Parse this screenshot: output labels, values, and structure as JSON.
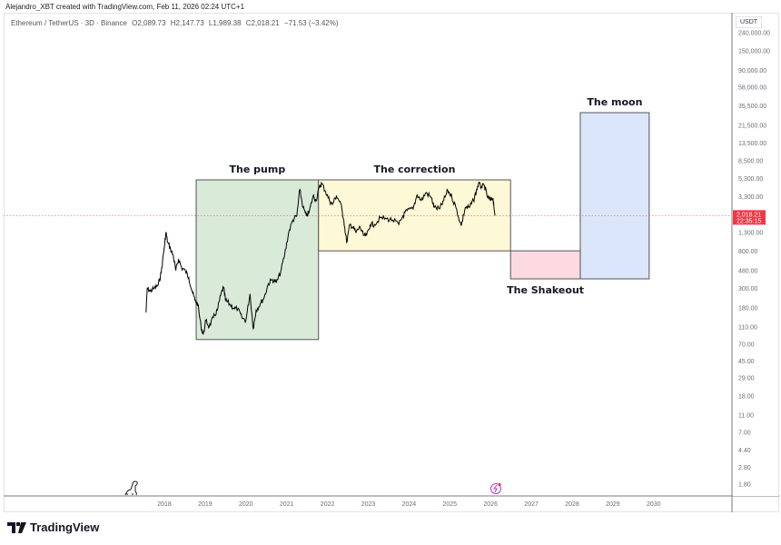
{
  "credit": "Alejandro_XBT created with TradingView.com, Feb 11, 2026 02:24 UTC+1",
  "legend": {
    "symbol": "Ethereum / TetherUS · 3D · Binance",
    "open": "O2,089.73",
    "high": "H2,147.73",
    "low": "L1,989.38",
    "close": "C2,018.21",
    "change": "−71.53 (−3.42%)"
  },
  "price_axis": {
    "unit": "USDT",
    "last_price": "2,018.21",
    "countdown": "22:35:15",
    "last_price_color": "#f23645"
  },
  "logo": "TradingView",
  "chart_data": {
    "type": "line",
    "title": "Ethereum / TetherUS · 3D · Binance",
    "y_scale": "log",
    "ylim": [
      1.6,
      240000
    ],
    "xlim": [
      2016.3,
      2031.9
    ],
    "grid": false,
    "y_ticks": [
      "240,000.00",
      "150,000.00",
      "90,000.00",
      "58,000.00",
      "35,500.00",
      "21,500.00",
      "13,500.00",
      "8,500.00",
      "5,300.00",
      "3,300.00",
      "1,300.00",
      "800.00",
      "480.00",
      "300.00",
      "180.00",
      "110.00",
      "70.00",
      "45.00",
      "29.00",
      "18.00",
      "11.00",
      "7.00",
      "4.40",
      "2.80",
      "1.80"
    ],
    "x_ticks": [
      "2018",
      "2019",
      "2020",
      "2021",
      "2022",
      "2023",
      "2024",
      "2025",
      "2026",
      "2027",
      "2028",
      "2029",
      "2030"
    ],
    "series": [
      {
        "color": "#000000",
        "points": [
          [
            2017.55,
            160
          ],
          [
            2017.58,
            300
          ],
          [
            2017.65,
            280
          ],
          [
            2017.75,
            300
          ],
          [
            2017.85,
            330
          ],
          [
            2017.92,
            450
          ],
          [
            2018.0,
            900
          ],
          [
            2018.04,
            1300
          ],
          [
            2018.08,
            1000
          ],
          [
            2018.15,
            850
          ],
          [
            2018.22,
            700
          ],
          [
            2018.28,
            480
          ],
          [
            2018.35,
            650
          ],
          [
            2018.42,
            520
          ],
          [
            2018.52,
            470
          ],
          [
            2018.6,
            400
          ],
          [
            2018.68,
            280
          ],
          [
            2018.75,
            220
          ],
          [
            2018.82,
            200
          ],
          [
            2018.9,
            110
          ],
          [
            2018.95,
            90
          ],
          [
            2019.02,
            130
          ],
          [
            2019.1,
            110
          ],
          [
            2019.2,
            140
          ],
          [
            2019.3,
            170
          ],
          [
            2019.38,
            250
          ],
          [
            2019.45,
            310
          ],
          [
            2019.5,
            220
          ],
          [
            2019.6,
            200
          ],
          [
            2019.7,
            180
          ],
          [
            2019.8,
            175
          ],
          [
            2019.9,
            140
          ],
          [
            2020.0,
            130
          ],
          [
            2020.1,
            260
          ],
          [
            2020.18,
            105
          ],
          [
            2020.25,
            170
          ],
          [
            2020.35,
            200
          ],
          [
            2020.45,
            240
          ],
          [
            2020.55,
            340
          ],
          [
            2020.65,
            380
          ],
          [
            2020.75,
            350
          ],
          [
            2020.85,
            460
          ],
          [
            2020.95,
            730
          ],
          [
            2021.05,
            1300
          ],
          [
            2021.15,
            1800
          ],
          [
            2021.25,
            2000
          ],
          [
            2021.32,
            4000
          ],
          [
            2021.4,
            2500
          ],
          [
            2021.48,
            2000
          ],
          [
            2021.55,
            2200
          ],
          [
            2021.65,
            3400
          ],
          [
            2021.72,
            3000
          ],
          [
            2021.8,
            4200
          ],
          [
            2021.86,
            4700
          ],
          [
            2021.95,
            3800
          ],
          [
            2022.05,
            3000
          ],
          [
            2022.12,
            2700
          ],
          [
            2022.22,
            3400
          ],
          [
            2022.32,
            2800
          ],
          [
            2022.4,
            1800
          ],
          [
            2022.47,
            1000
          ],
          [
            2022.55,
            1600
          ],
          [
            2022.62,
            1500
          ],
          [
            2022.7,
            1300
          ],
          [
            2022.8,
            1500
          ],
          [
            2022.88,
            1200
          ],
          [
            2022.96,
            1200
          ],
          [
            2023.05,
            1600
          ],
          [
            2023.15,
            1600
          ],
          [
            2023.3,
            1900
          ],
          [
            2023.45,
            1850
          ],
          [
            2023.6,
            1800
          ],
          [
            2023.75,
            1600
          ],
          [
            2023.85,
            2000
          ],
          [
            2023.95,
            2300
          ],
          [
            2024.1,
            2400
          ],
          [
            2024.2,
            3500
          ],
          [
            2024.3,
            3000
          ],
          [
            2024.42,
            3700
          ],
          [
            2024.55,
            3200
          ],
          [
            2024.62,
            2500
          ],
          [
            2024.75,
            2400
          ],
          [
            2024.85,
            3000
          ],
          [
            2024.95,
            3900
          ],
          [
            2025.05,
            3300
          ],
          [
            2025.15,
            2500
          ],
          [
            2025.28,
            1550
          ],
          [
            2025.38,
            2500
          ],
          [
            2025.48,
            2500
          ],
          [
            2025.58,
            3000
          ],
          [
            2025.65,
            3800
          ],
          [
            2025.7,
            4600
          ],
          [
            2025.78,
            4300
          ],
          [
            2025.85,
            4400
          ],
          [
            2025.92,
            3300
          ],
          [
            2026.0,
            3000
          ],
          [
            2026.06,
            3200
          ],
          [
            2026.11,
            2018
          ]
        ]
      }
    ],
    "annotations": [
      {
        "label": "The pump",
        "x": [
          2018.78,
          2021.78
        ],
        "y": [
          79,
          5140
        ],
        "fill": "#d9ead9"
      },
      {
        "label": "The correction",
        "x": [
          2021.78,
          2026.49
        ],
        "y": [
          803,
          5140
        ],
        "fill": "#fdf8d6"
      },
      {
        "label": "The Shakeout",
        "x": [
          2026.49,
          2028.2
        ],
        "y": [
          386,
          803
        ],
        "fill": "#fcdadf"
      },
      {
        "label": "The moon",
        "x": [
          2028.2,
          2029.89
        ],
        "y": [
          386,
          29800
        ],
        "fill": "#dce6fb"
      }
    ]
  }
}
